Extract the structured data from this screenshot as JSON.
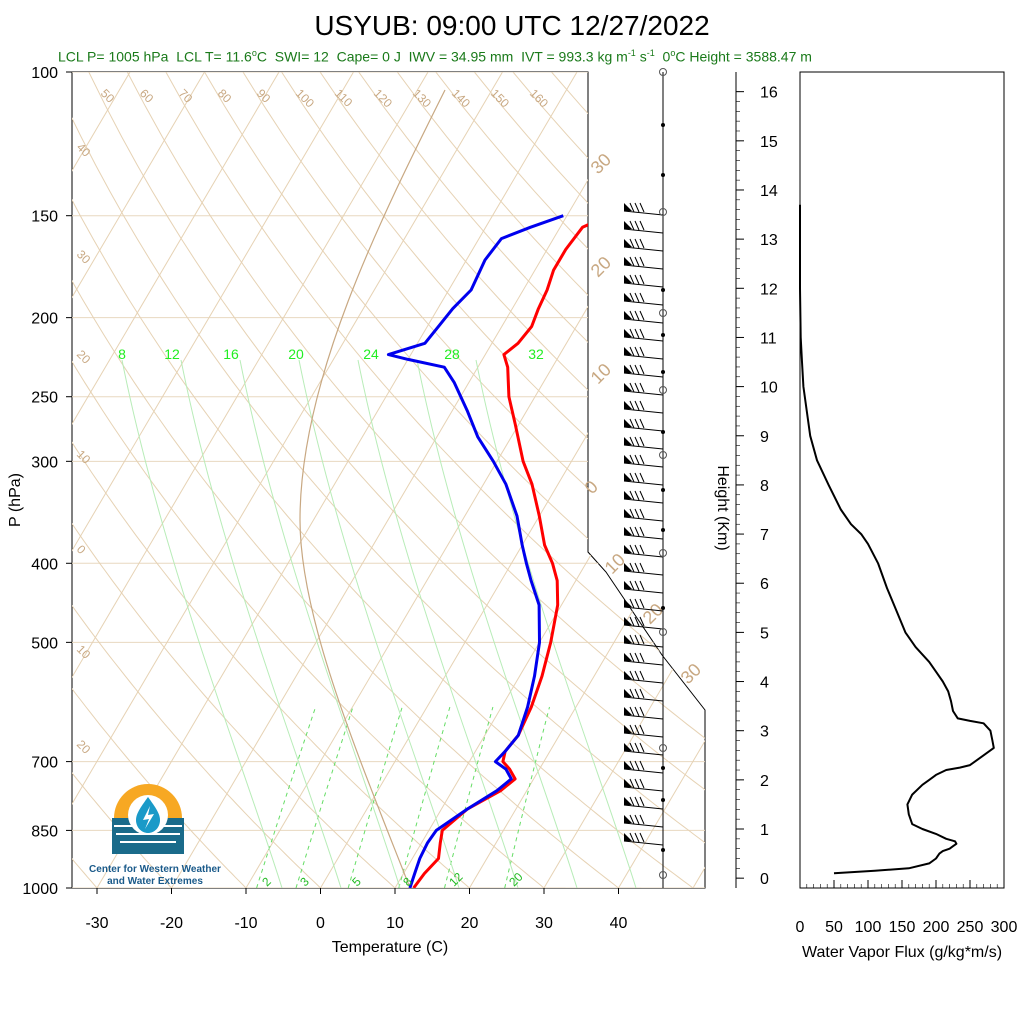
{
  "title": "USYUB: 09:00 UTC 12/27/2022",
  "stats": {
    "lcl_p": "LCL P= 1005 hPa",
    "lcl_t": "LCL T= 11.6",
    "lcl_t_unit": "C",
    "swi": "SWI= 12",
    "cape": "Cape= 0 J",
    "iwv": "IWV = 34.95 mm",
    "ivt": "IVT = 993.3 kg m",
    "ivt_sup1": "-1",
    "ivt_mid": " s",
    "ivt_sup2": "-1",
    "zero_label": "0",
    "zero_height": "C Height = 3588.47 m"
  },
  "logo": {
    "line1": "Center for Western Weather",
    "line2": "and Water Extremes"
  },
  "colors": {
    "temperature": "#ff0000",
    "dewpoint": "#0000ee",
    "isotherm": "#e6d2b4",
    "mixing_ratio": "#66dd66",
    "flux": "#000000",
    "stats_text": "#1a7a1a"
  },
  "chart_data": [
    {
      "type": "line",
      "subtype": "skew-t",
      "xlabel": "Temperature (C)",
      "ylabel": "P (hPa)",
      "xlim": [
        -34,
        52
      ],
      "ylim": [
        1000,
        100
      ],
      "y_scale": "log",
      "x_ticks": [
        "-30",
        "-20",
        "-10",
        "0",
        "10",
        "20",
        "30",
        "40"
      ],
      "y_ticks": [
        "100",
        "150",
        "200",
        "250",
        "300",
        "400",
        "500",
        "700",
        "850",
        "1000"
      ],
      "isotherm_labels": [
        "50",
        "60",
        "70",
        "80",
        "90",
        "100",
        "110",
        "120",
        "130",
        "140",
        "150",
        "160",
        "40",
        "30",
        "20",
        "10",
        "0",
        "10",
        "20"
      ],
      "theta_labels": [
        "8",
        "12",
        "16",
        "20",
        "24",
        "28",
        "32"
      ],
      "mixing_ratio_labels": [
        "2",
        "3",
        "5",
        "8",
        "12",
        "20"
      ],
      "right_labels": [
        "30",
        "20",
        "10",
        "0",
        "10",
        "20",
        "30"
      ],
      "series": [
        {
          "key": "temperature",
          "p": [
            1000,
            960,
            920,
            880,
            850,
            800,
            760,
            735,
            715,
            700,
            680,
            650,
            600,
            550,
            500,
            450,
            420,
            400,
            380,
            350,
            320,
            300,
            270,
            250,
            230,
            222,
            215,
            205,
            195,
            185,
            175,
            165,
            155,
            150
          ],
          "t": [
            12.5,
            12.8,
            13.5,
            12.5,
            11.8,
            13.5,
            16.5,
            17.5,
            16.0,
            14.5,
            14.0,
            14.5,
            14.0,
            13.0,
            11.5,
            9.5,
            7.5,
            5.5,
            3.0,
            0.0,
            -3.5,
            -6.5,
            -10.5,
            -13.5,
            -16.0,
            -17.5,
            -16.5,
            -16.0,
            -16.5,
            -16.8,
            -17.5,
            -17.5,
            -17.0,
            -14.5
          ]
        },
        {
          "key": "dewpoint",
          "p": [
            1000,
            960,
            920,
            880,
            850,
            800,
            760,
            735,
            715,
            700,
            680,
            650,
            600,
            550,
            500,
            450,
            420,
            400,
            380,
            350,
            320,
            300,
            280,
            260,
            240,
            230,
            225,
            222,
            215,
            205,
            195,
            185,
            170,
            160,
            155,
            150
          ],
          "t": [
            12.0,
            11.5,
            11.0,
            10.8,
            11.0,
            13.5,
            16.0,
            17.0,
            15.5,
            13.5,
            14.0,
            14.5,
            13.5,
            12.0,
            10.0,
            7.0,
            4.0,
            2.0,
            0.0,
            -3.0,
            -7.0,
            -10.5,
            -14.5,
            -18.0,
            -22.0,
            -24.5,
            -30.0,
            -33.0,
            -29.0,
            -28.5,
            -28.0,
            -27.0,
            -27.5,
            -27.0,
            -24.0,
            -20.5
          ]
        }
      ]
    },
    {
      "type": "line",
      "xlabel": "Water Vapor Flux (g/kg*m/s)",
      "ylabel": "Height (Km)",
      "xlim": [
        0,
        300
      ],
      "ylim": [
        -0.2,
        16.4
      ],
      "x_ticks": [
        "0",
        "50",
        "100",
        "150",
        "200",
        "250",
        "300"
      ],
      "y_ticks": [
        "0",
        "1",
        "2",
        "3",
        "4",
        "5",
        "6",
        "7",
        "8",
        "9",
        "10",
        "11",
        "12",
        "13",
        "14",
        "15",
        "16"
      ],
      "series": [
        {
          "key": "flux",
          "x": [
            50,
            110,
            160,
            190,
            200,
            205,
            210,
            220,
            225,
            230,
            228,
            215,
            200,
            180,
            165,
            160,
            158,
            165,
            180,
            190,
            200,
            215,
            235,
            250,
            270,
            285,
            283,
            280,
            270,
            250,
            232,
            225,
            222,
            218,
            210,
            200,
            190,
            170,
            155,
            140,
            128,
            115,
            100,
            90,
            75,
            60,
            42,
            25,
            15,
            10,
            5,
            3,
            1,
            0,
            0
          ],
          "y": [
            0.1,
            0.15,
            0.2,
            0.3,
            0.4,
            0.5,
            0.55,
            0.6,
            0.65,
            0.7,
            0.75,
            0.8,
            0.9,
            1.0,
            1.1,
            1.3,
            1.5,
            1.7,
            1.9,
            2.0,
            2.1,
            2.2,
            2.25,
            2.3,
            2.5,
            2.65,
            2.8,
            3.0,
            3.15,
            3.2,
            3.25,
            3.4,
            3.6,
            3.8,
            4.0,
            4.2,
            4.4,
            4.7,
            5.0,
            5.5,
            5.9,
            6.4,
            6.8,
            7.0,
            7.2,
            7.5,
            8.0,
            8.5,
            9.0,
            9.5,
            10.0,
            10.5,
            11.0,
            12.0,
            13.7
          ]
        }
      ]
    }
  ]
}
